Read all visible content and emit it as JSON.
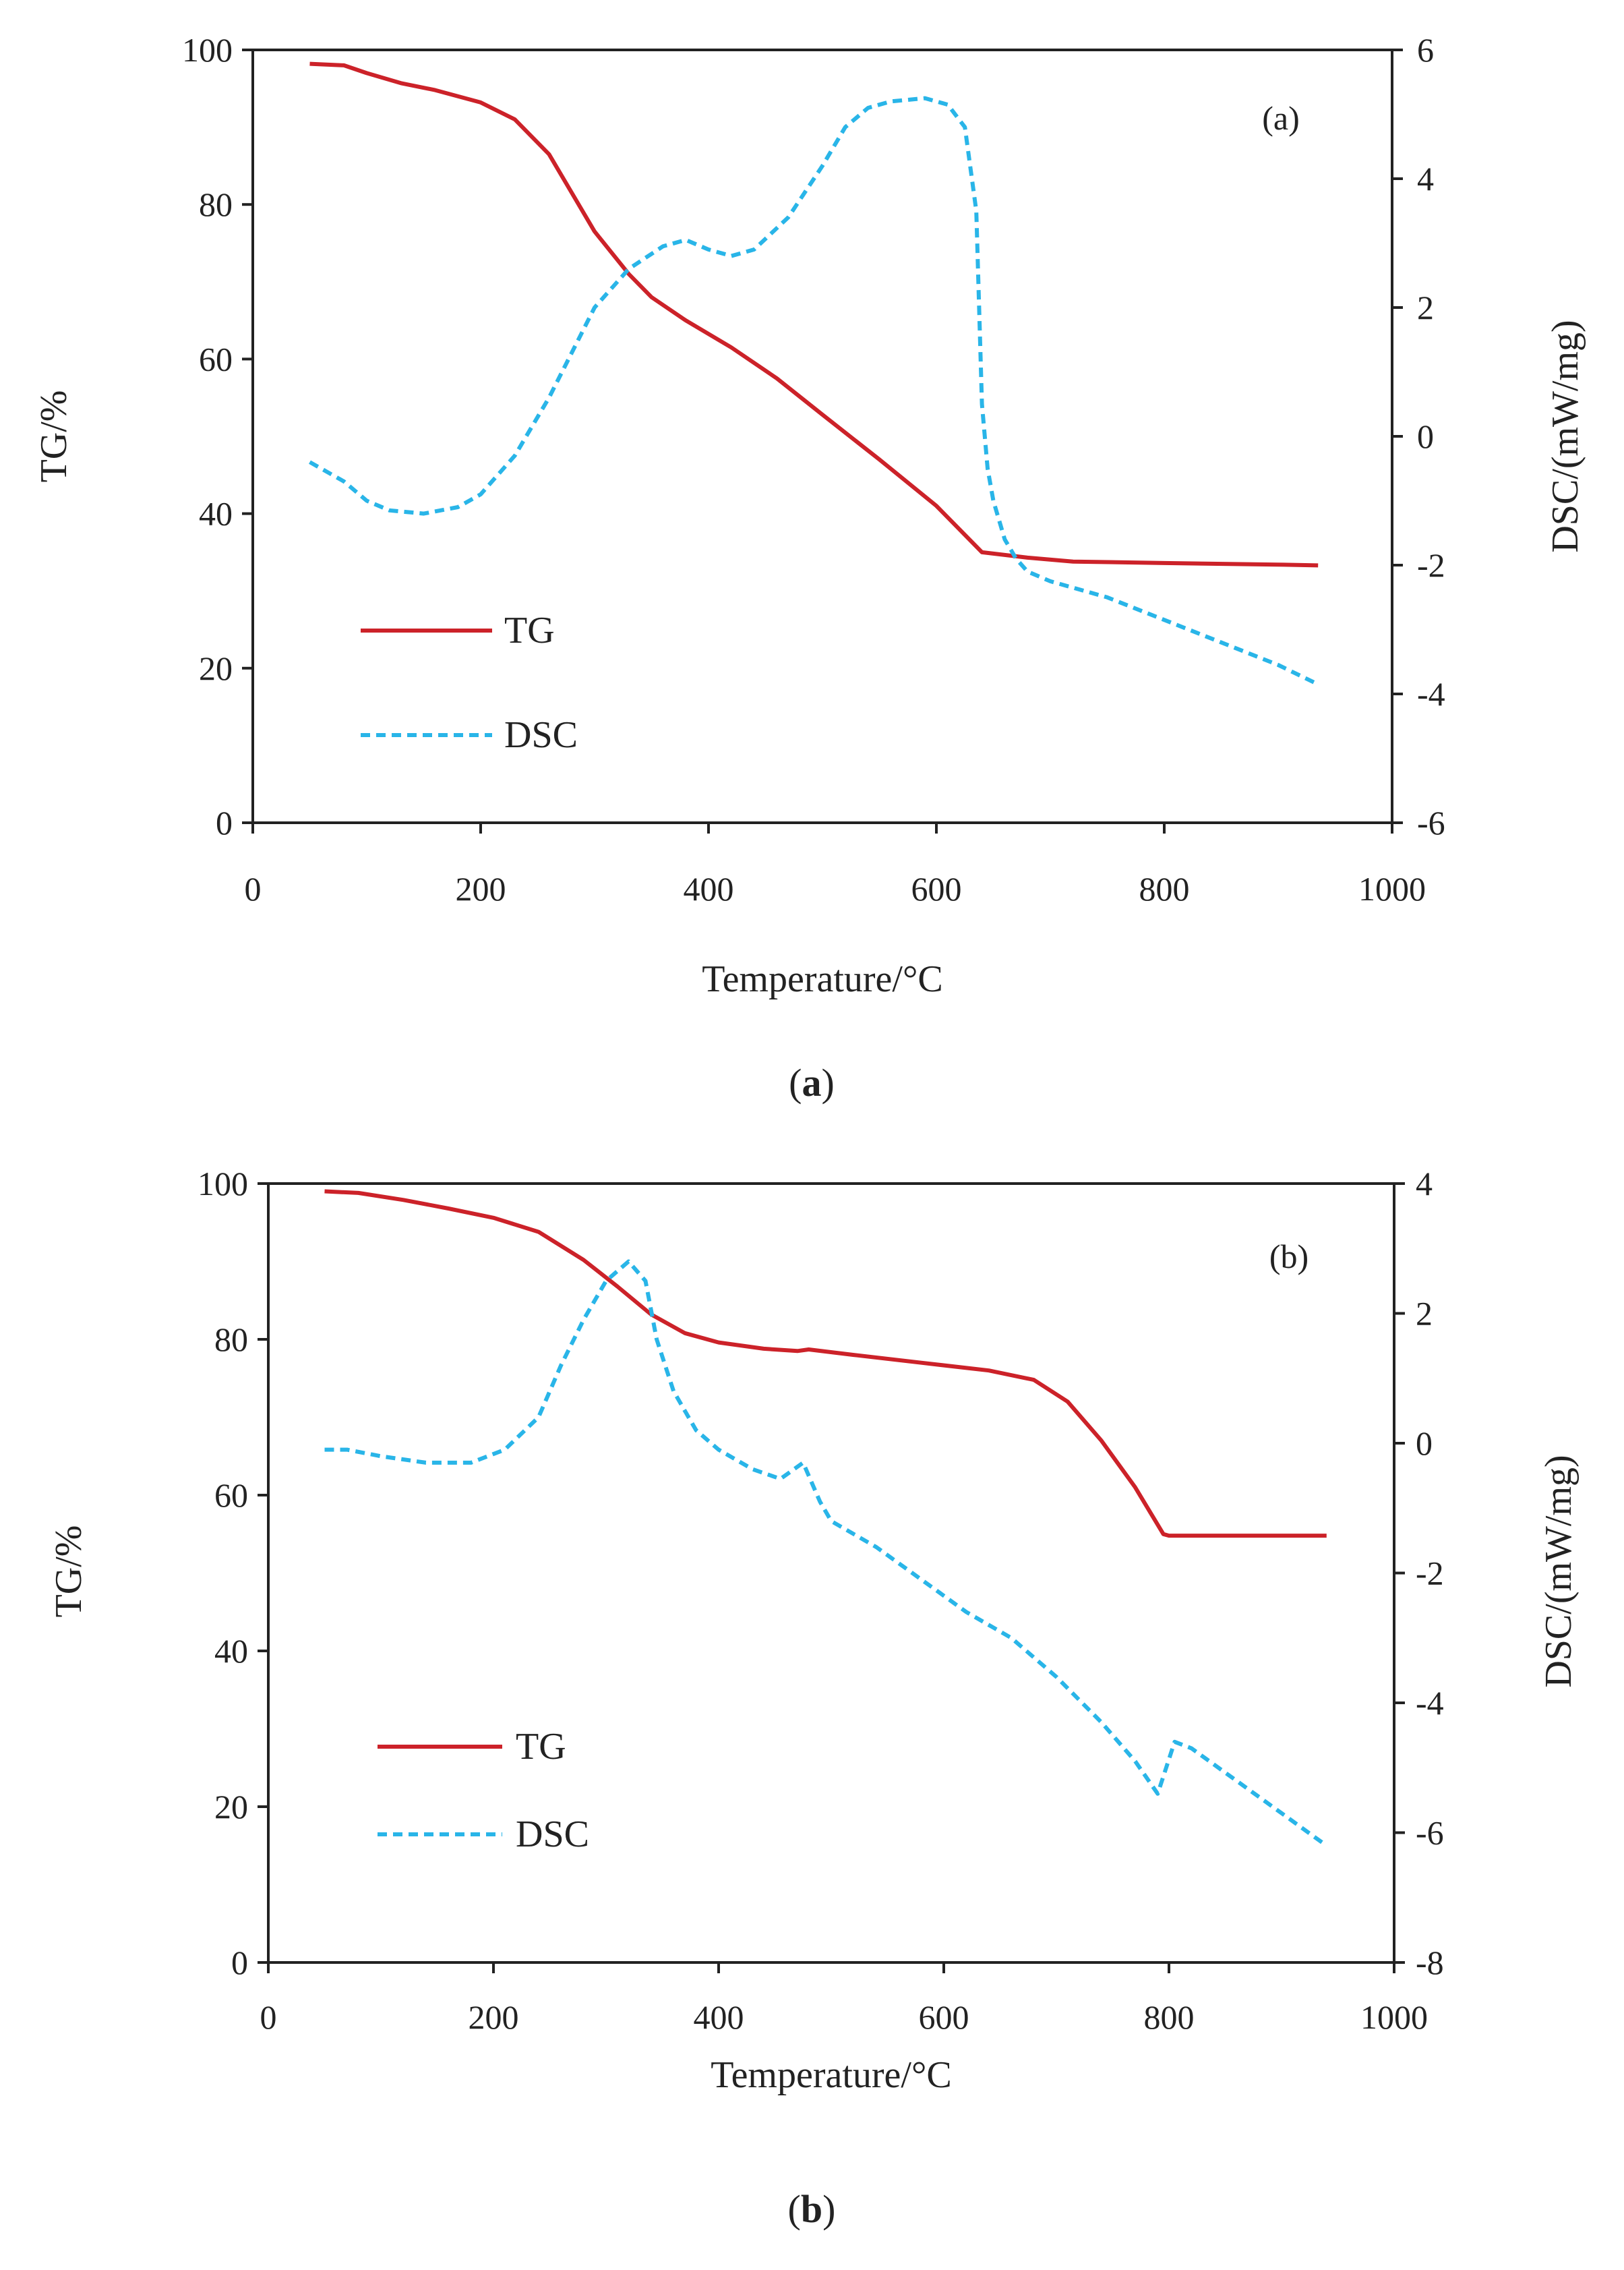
{
  "chart_data": [
    {
      "type": "line",
      "panel_label": "(a)",
      "caption": {
        "open": "(",
        "letter": "a",
        "close": ")"
      },
      "xlabel": "Temperature/°C",
      "ylabel": "TG/%",
      "y2label": "DSC/(mW/mg)",
      "xlim": [
        0,
        1000
      ],
      "ylim": [
        0,
        100
      ],
      "y2lim": [
        -6,
        6
      ],
      "xticks": [
        "0",
        "200",
        "400",
        "600",
        "800",
        "1000"
      ],
      "yticks": [
        "0",
        "20",
        "40",
        "60",
        "80",
        "100"
      ],
      "y2ticks": [
        "-6",
        "-4",
        "-2",
        "0",
        "2",
        "4",
        "6"
      ],
      "legend": {
        "placement": "lower-left",
        "entries": [
          "TG",
          "DSC"
        ]
      },
      "series": [
        {
          "name": "TG",
          "axis": "left",
          "color": "#cc2229",
          "dash": "solid",
          "x": [
            50,
            80,
            100,
            130,
            160,
            200,
            230,
            260,
            280,
            300,
            330,
            350,
            380,
            420,
            460,
            500,
            550,
            600,
            640,
            680,
            720,
            800,
            900,
            935
          ],
          "y": [
            98.2,
            98.0,
            97.0,
            95.7,
            94.8,
            93.2,
            91.0,
            86.5,
            81.5,
            76.5,
            71.0,
            68.0,
            65.0,
            61.5,
            57.5,
            52.8,
            47.0,
            41.0,
            35.0,
            34.3,
            33.8,
            33.6,
            33.4,
            33.3
          ]
        },
        {
          "name": "DSC",
          "axis": "right",
          "color": "#29b5e8",
          "dash": "dashed",
          "x": [
            50,
            80,
            100,
            120,
            150,
            180,
            200,
            230,
            260,
            280,
            300,
            330,
            360,
            380,
            400,
            420,
            440,
            470,
            500,
            520,
            540,
            560,
            590,
            610,
            625,
            635,
            640,
            645,
            650,
            660,
            670,
            680,
            700,
            750,
            800,
            850,
            900,
            935
          ],
          "y": [
            -0.4,
            -0.7,
            -1.0,
            -1.15,
            -1.2,
            -1.1,
            -0.9,
            -0.3,
            0.6,
            1.3,
            2.0,
            2.6,
            2.95,
            3.05,
            2.9,
            2.8,
            2.9,
            3.4,
            4.2,
            4.8,
            5.1,
            5.2,
            5.25,
            5.15,
            4.8,
            3.5,
            0.5,
            -0.5,
            -1.0,
            -1.6,
            -1.9,
            -2.1,
            -2.25,
            -2.5,
            -2.85,
            -3.2,
            -3.55,
            -3.85
          ]
        }
      ]
    },
    {
      "type": "line",
      "panel_label": "(b)",
      "caption": {
        "open": "(",
        "letter": "b",
        "close": ")"
      },
      "xlabel": "Temperature/°C",
      "ylabel": "TG/%",
      "y2label": "DSC/(mW/mg)",
      "xlim": [
        0,
        1000
      ],
      "ylim": [
        0,
        100
      ],
      "y2lim": [
        -8,
        4
      ],
      "xticks": [
        "0",
        "200",
        "400",
        "600",
        "800",
        "1000"
      ],
      "yticks": [
        "0",
        "20",
        "40",
        "60",
        "80",
        "100"
      ],
      "y2ticks": [
        "-8",
        "-6",
        "-4",
        "-2",
        "0",
        "2",
        "4"
      ],
      "legend": {
        "placement": "lower-left",
        "entries": [
          "TG",
          "DSC"
        ]
      },
      "series": [
        {
          "name": "TG",
          "axis": "left",
          "color": "#cc2229",
          "dash": "solid",
          "x": [
            50,
            80,
            120,
            160,
            200,
            240,
            280,
            310,
            340,
            370,
            400,
            440,
            470,
            480,
            520,
            580,
            640,
            680,
            710,
            740,
            770,
            795,
            800,
            850,
            940
          ],
          "y": [
            99.0,
            98.8,
            97.9,
            96.8,
            95.6,
            93.8,
            90.2,
            86.8,
            83.2,
            80.8,
            79.6,
            78.8,
            78.5,
            78.7,
            78.0,
            77.0,
            76.0,
            74.8,
            72.0,
            67.0,
            61.0,
            55.0,
            54.8,
            54.8,
            54.8
          ]
        },
        {
          "name": "DSC",
          "axis": "right",
          "color": "#29b5e8",
          "dash": "dashed",
          "x": [
            50,
            70,
            100,
            140,
            180,
            210,
            240,
            260,
            280,
            300,
            320,
            335,
            345,
            360,
            380,
            400,
            430,
            455,
            475,
            490,
            500,
            540,
            580,
            620,
            660,
            700,
            740,
            770,
            790,
            805,
            820,
            860,
            900,
            940
          ],
          "y": [
            -0.1,
            -0.1,
            -0.2,
            -0.3,
            -0.3,
            -0.1,
            0.4,
            1.2,
            1.9,
            2.5,
            2.8,
            2.5,
            1.6,
            0.8,
            0.2,
            -0.1,
            -0.4,
            -0.55,
            -0.3,
            -0.9,
            -1.2,
            -1.6,
            -2.1,
            -2.6,
            -3.0,
            -3.6,
            -4.3,
            -4.9,
            -5.4,
            -4.6,
            -4.7,
            -5.2,
            -5.7,
            -6.2
          ]
        }
      ]
    }
  ]
}
